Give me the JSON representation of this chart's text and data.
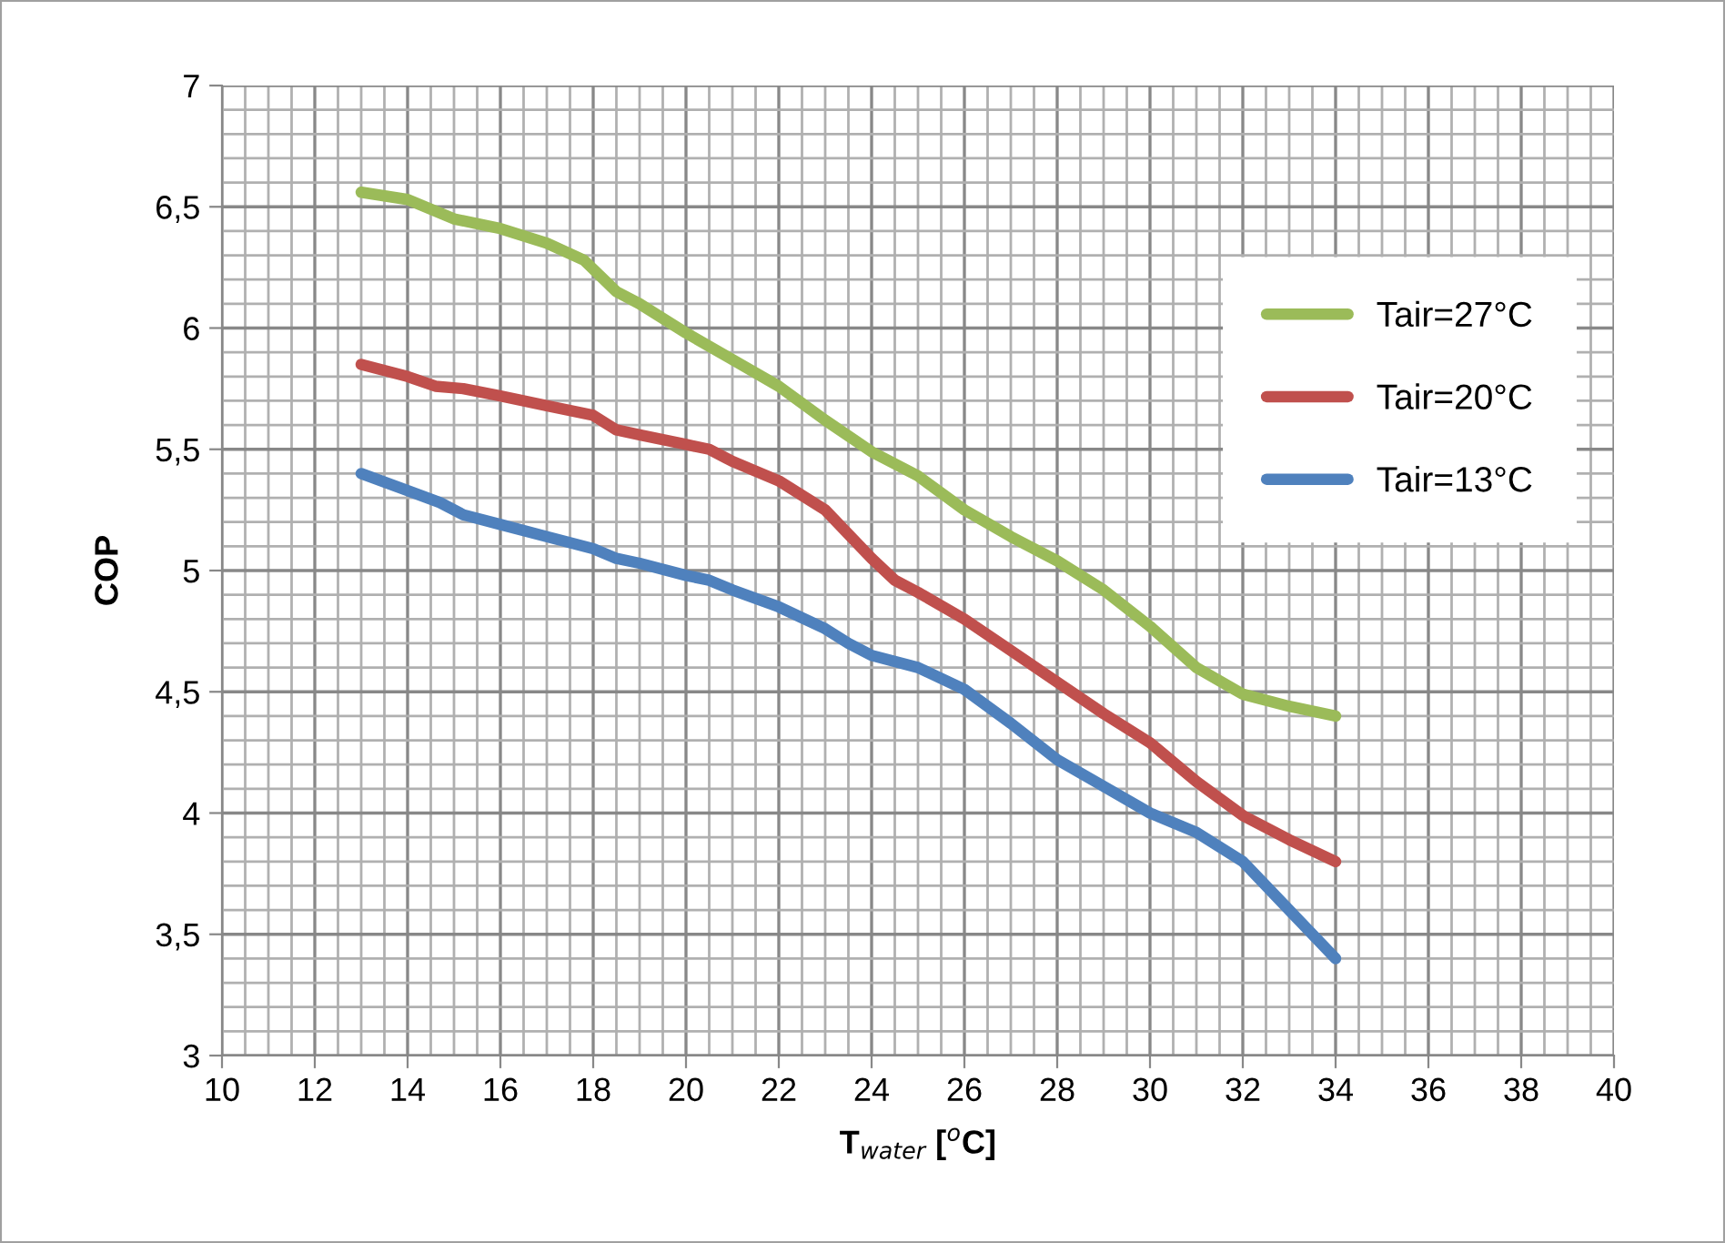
{
  "chart_data": {
    "type": "line",
    "xlabel": "T$_{water}$ [$^{o}$C]",
    "ylabel": "COP",
    "xlim": [
      10,
      40
    ],
    "xticks": [
      10,
      12,
      14,
      16,
      18,
      20,
      22,
      24,
      26,
      28,
      30,
      32,
      34,
      36,
      38,
      40
    ],
    "ylim": [
      3,
      7
    ],
    "yticks": [
      3,
      {
        "value": 3.5,
        "label": "3,5"
      },
      4,
      {
        "value": 4.5,
        "label": "4,5"
      },
      5,
      {
        "value": 5.5,
        "label": "5,5"
      },
      6,
      {
        "value": 6.5,
        "label": "6,5"
      },
      7
    ],
    "grid": true,
    "legend": "top right",
    "line_style": "solid",
    "marker": "none",
    "series": [
      {
        "name": "Tair=27°C",
        "color": "#9bbb59",
        "x": [
          13,
          14,
          15,
          16,
          17,
          17.8,
          18.5,
          19,
          20,
          21,
          22,
          23,
          24,
          25,
          26,
          27,
          28,
          29,
          30,
          31,
          32,
          33,
          34
        ],
        "values": [
          6.56,
          6.53,
          6.45,
          6.41,
          6.35,
          6.28,
          6.15,
          6.1,
          5.98,
          5.87,
          5.76,
          5.62,
          5.49,
          5.39,
          5.25,
          5.14,
          5.04,
          4.92,
          4.77,
          4.6,
          4.49,
          4.44,
          4.4
        ]
      },
      {
        "name": "Tair=20°C",
        "color": "#c0504d",
        "x": [
          13,
          14,
          14.6,
          15.2,
          16,
          17,
          18,
          18.5,
          19,
          20,
          20.5,
          21,
          22,
          23,
          23.6,
          24,
          24.5,
          25,
          26,
          27,
          28,
          29,
          30,
          31,
          32,
          33,
          34
        ],
        "values": [
          5.85,
          5.8,
          5.76,
          5.75,
          5.72,
          5.68,
          5.64,
          5.58,
          5.56,
          5.52,
          5.5,
          5.45,
          5.37,
          5.25,
          5.13,
          5.05,
          4.96,
          4.91,
          4.8,
          4.67,
          4.54,
          4.41,
          4.29,
          4.13,
          3.99,
          3.89,
          3.8
        ]
      },
      {
        "name": "Tair=13°C",
        "color": "#4f81bd",
        "x": [
          13,
          14,
          14.7,
          15.2,
          16,
          17,
          18,
          18.5,
          19,
          20,
          20.5,
          21,
          22,
          23,
          23.5,
          24,
          25,
          26,
          27,
          28,
          29,
          30,
          31,
          32,
          33,
          34
        ],
        "values": [
          5.4,
          5.33,
          5.28,
          5.23,
          5.19,
          5.14,
          5.09,
          5.05,
          5.03,
          4.98,
          4.96,
          4.92,
          4.85,
          4.76,
          4.7,
          4.65,
          4.6,
          4.51,
          4.37,
          4.22,
          4.11,
          4.0,
          3.92,
          3.8,
          3.6,
          3.4
        ]
      }
    ]
  }
}
